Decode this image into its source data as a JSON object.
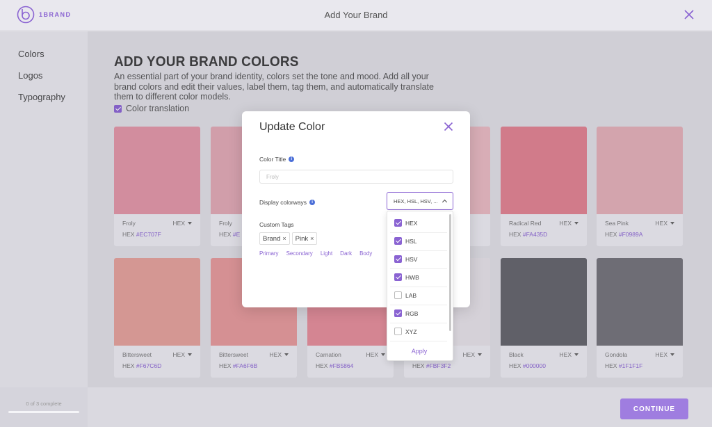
{
  "app": {
    "logo_text": "1BRAND",
    "title": "Add Your Brand"
  },
  "sidebar": {
    "items": [
      {
        "label": "Colors"
      },
      {
        "label": "Logos"
      },
      {
        "label": "Typography"
      }
    ]
  },
  "main": {
    "heading": "ADD YOUR BRAND COLORS",
    "description": "An essential part of your brand identity, colors set the tone and mood. Add all your brand colors and edit their values, label them, tag them, and automatically translate them to different color models.",
    "color_translation_label": "Color translation"
  },
  "colors": [
    {
      "name": "Froly",
      "format": "HEX",
      "hex_label": "HEX",
      "hex": "#EC707F",
      "swatch": "#e195a5"
    },
    {
      "name": "Froly",
      "format": "",
      "hex_label": "HEX",
      "hex": "#E",
      "swatch": "#e0a8b3"
    },
    {
      "name": "",
      "format": "",
      "hex_label": "",
      "hex": "",
      "swatch": "#e4a9b3"
    },
    {
      "name": "",
      "format": "",
      "hex_label": "",
      "hex": "",
      "swatch": "#e8b8c0"
    },
    {
      "name": "Radical Red",
      "format": "HEX",
      "hex_label": "HEX",
      "hex": "#FA435D",
      "swatch": "#e0808f"
    },
    {
      "name": "Sea Pink",
      "format": "HEX",
      "hex_label": "HEX",
      "hex": "#F0989A",
      "swatch": "#e2aeb6"
    },
    {
      "name": "Bittersweet",
      "format": "HEX",
      "hex_label": "HEX",
      "hex": "#F67C6D",
      "swatch": "#e4a099"
    },
    {
      "name": "Bittersweet",
      "format": "HEX",
      "hex_label": "HEX",
      "hex": "#FA6F6B",
      "swatch": "#e59899"
    },
    {
      "name": "Carnation",
      "format": "HEX",
      "hex_label": "HEX",
      "hex": "#FB5864",
      "swatch": "#e48c98"
    },
    {
      "name": "",
      "format": "HEX",
      "hex_label": "HEX",
      "hex": "#FBF3F2",
      "swatch": "#e5e0e6"
    },
    {
      "name": "Black",
      "format": "HEX",
      "hex_label": "HEX",
      "hex": "#000000",
      "swatch": "#636269"
    },
    {
      "name": "Gondola",
      "format": "HEX",
      "hex_label": "HEX",
      "hex": "#1F1F1F",
      "swatch": "#727178"
    }
  ],
  "modal": {
    "title": "Update Color",
    "color_title_label": "Color Title",
    "color_title_placeholder": "Froly",
    "colorways_label": "Display colorways",
    "colorways_value": "HEX, HSL, HSV, ...",
    "tags_label": "Custom Tags",
    "tags": [
      "Brand",
      "Pink"
    ],
    "suggestions": [
      "Primary",
      "Secondary",
      "Light",
      "Dark",
      "Body"
    ]
  },
  "dropdown": {
    "options": [
      {
        "label": "HEX",
        "checked": true
      },
      {
        "label": "HSL",
        "checked": true
      },
      {
        "label": "HSV",
        "checked": true
      },
      {
        "label": "HWB",
        "checked": true
      },
      {
        "label": "LAB",
        "checked": false
      },
      {
        "label": "RGB",
        "checked": true
      },
      {
        "label": "XYZ",
        "checked": false
      }
    ],
    "apply_label": "Apply"
  },
  "footer": {
    "progress_text": "0 of 3 complete",
    "progress_fraction": 0,
    "continue_label": "CONTINUE"
  },
  "theme": {
    "accent": "#8a63d2",
    "info_blue": "#4b6fd8"
  }
}
